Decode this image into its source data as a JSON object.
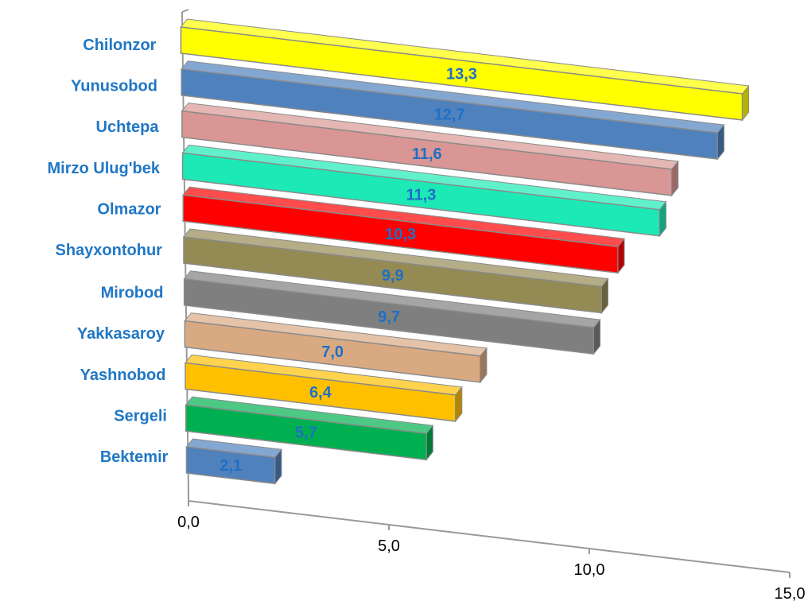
{
  "chart_data": {
    "type": "bar",
    "orientation": "horizontal",
    "style": "3d",
    "categories": [
      "Chilonzor",
      "Yunusobod",
      "Uchtepa",
      "Mirzo Ulug'bek",
      "Olmazor",
      "Shayxontohur",
      "Mirobod",
      "Yakkasaroy",
      "Yashnobod",
      "Sergeli",
      "Bektemir"
    ],
    "values": [
      13.3,
      12.7,
      11.6,
      11.3,
      10.3,
      9.9,
      9.7,
      7.0,
      6.4,
      5.7,
      2.1
    ],
    "value_labels": [
      "13,3",
      "12,7",
      "11,6",
      "11,3",
      "10,3",
      "9,9",
      "9,7",
      "7,0",
      "6,4",
      "5,7",
      "2,1"
    ],
    "bar_colors": [
      "#ffff00",
      "#4f81bd",
      "#d99694",
      "#1de9b6",
      "#ff0000",
      "#948a54",
      "#7f7f7f",
      "#d9a982",
      "#ffc000",
      "#00b050",
      "#4f81bd"
    ],
    "xlim": [
      0,
      15
    ],
    "x_ticks": [
      0,
      5,
      10,
      15
    ],
    "x_tick_labels": [
      "0,0",
      "5,0",
      "10,0",
      "15,0"
    ],
    "title": "",
    "xlabel": "",
    "ylabel": "",
    "grid": false,
    "legend": "none",
    "label_color": "#1f77c4"
  }
}
